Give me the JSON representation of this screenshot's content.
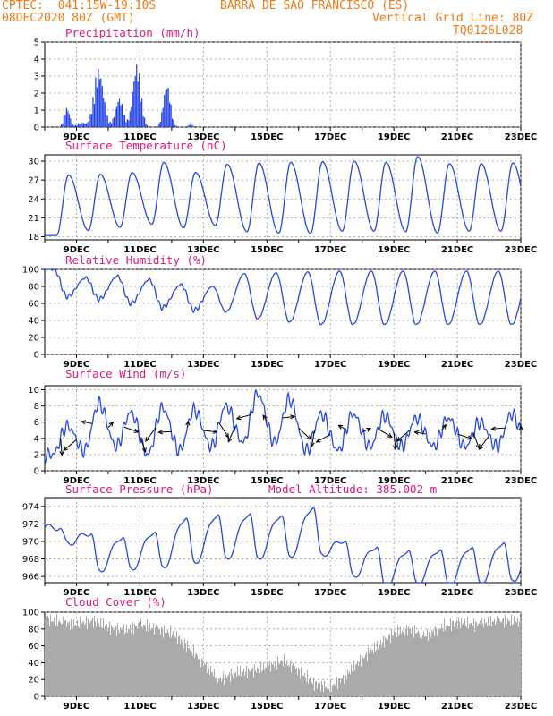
{
  "header": {
    "line1_left": "CPTEC:  041:15W-19:10S",
    "line1_right": "BARRA DE SAO FRANCISCO (ES)",
    "line2_left": "08DEC2020 80Z (GMT)",
    "line2_right": "Vertical Grid Line: 80Z",
    "line3_right": "TQ0126L028"
  },
  "colors": {
    "header": "#ee7a1a",
    "title": "#e0167c",
    "line": "#2448e0",
    "bar": "#1f3fe6",
    "cloud": "#aaaaaa",
    "arrow": "#000000",
    "grid": "#999999"
  },
  "chart_data": [
    {
      "type": "bar",
      "title": "Precipitation (mm/h)",
      "ylim": [
        0,
        5
      ],
      "yticks": [
        0,
        1,
        2,
        3,
        4,
        5
      ],
      "xticks": [
        "9DEC",
        "11DEC",
        "13DEC",
        "15DEC",
        "17DEC",
        "19DEC",
        "21DEC",
        "23DEC"
      ],
      "x_range_days": [
        8.0,
        23.0
      ],
      "rain_events": [
        {
          "center": 8.7,
          "width": 0.18,
          "peak": 1.2
        },
        {
          "center": 9.15,
          "width": 0.25,
          "peak": 0.3
        },
        {
          "center": 9.7,
          "width": 0.3,
          "peak": 3.6
        },
        {
          "center": 10.35,
          "width": 0.25,
          "peak": 1.8
        },
        {
          "center": 10.9,
          "width": 0.25,
          "peak": 3.9
        },
        {
          "center": 11.85,
          "width": 0.22,
          "peak": 2.7
        },
        {
          "center": 12.6,
          "width": 0.1,
          "peak": 0.3
        }
      ]
    },
    {
      "type": "line",
      "title": "Surface Temperature (nC)",
      "ylim": [
        17.5,
        31
      ],
      "yticks": [
        18,
        21,
        24,
        27,
        30
      ],
      "xticks": [
        "9DEC",
        "11DEC",
        "13DEC",
        "15DEC",
        "17DEC",
        "19DEC",
        "21DEC",
        "23DEC"
      ],
      "daily_min": [
        18.2,
        19.0,
        19.5,
        20.0,
        19.4,
        19.8,
        18.8,
        18.6,
        18.5,
        18.9,
        18.9,
        18.8,
        18.6,
        18.9,
        18.9,
        19.0
      ],
      "daily_max": [
        27.8,
        27.9,
        28.2,
        29.8,
        28.2,
        29.5,
        29.7,
        29.8,
        29.9,
        30.0,
        29.8,
        30.7,
        29.6,
        29.6,
        29.7,
        29.8
      ]
    },
    {
      "type": "line",
      "title": "Relative Humidity (%)",
      "ylim": [
        0,
        100
      ],
      "yticks": [
        0,
        20,
        40,
        60,
        80,
        100
      ],
      "xticks": [
        "9DEC",
        "11DEC",
        "13DEC",
        "15DEC",
        "17DEC",
        "19DEC",
        "21DEC",
        "23DEC"
      ],
      "daily_max": [
        100,
        90,
        92,
        88,
        82,
        80,
        95,
        96,
        97,
        98,
        98,
        98,
        98,
        98,
        98,
        98
      ],
      "daily_min": [
        68,
        65,
        60,
        55,
        52,
        50,
        42,
        38,
        35,
        35,
        35,
        35,
        35,
        35,
        35,
        35
      ]
    },
    {
      "type": "line",
      "title": "Surface Wind (m/s)",
      "ylim": [
        0,
        10.5
      ],
      "yticks": [
        0,
        2,
        4,
        6,
        8,
        10
      ],
      "xticks": [
        "9DEC",
        "11DEC",
        "13DEC",
        "15DEC",
        "17DEC",
        "19DEC",
        "21DEC",
        "23DEC"
      ],
      "daily_max": [
        5.5,
        8.3,
        7.2,
        7.8,
        7.5,
        8.0,
        9.5,
        8.8,
        7.0,
        7.0,
        6.8,
        6.5,
        6.5,
        6.0,
        7.0,
        7.8
      ],
      "daily_min": [
        2.0,
        2.5,
        3.0,
        2.0,
        2.5,
        3.0,
        3.5,
        3.5,
        2.5,
        2.5,
        3.0,
        3.0,
        3.0,
        3.0,
        3.0,
        3.0
      ],
      "arrows_note": "direction vectors"
    },
    {
      "type": "line",
      "title": "Surface Pressure (hPa)",
      "subtitle": "Model Altitude: 385.002 m",
      "ylim": [
        965.3,
        975
      ],
      "yticks": [
        966,
        968,
        970,
        972,
        974
      ],
      "xticks": [
        "9DEC",
        "11DEC",
        "13DEC",
        "15DEC",
        "17DEC",
        "19DEC",
        "21DEC",
        "23DEC"
      ],
      "daily_max": [
        971.6,
        971.0,
        970.6,
        971.2,
        972.8,
        973.2,
        973.3,
        973.1,
        974.0,
        970.2,
        969.5,
        969.1,
        969.2,
        969.5,
        970.0,
        969.8
      ],
      "daily_min": [
        969.8,
        966.6,
        966.8,
        967.0,
        967.5,
        968.0,
        968.0,
        968.2,
        968.5,
        966.0,
        964.8,
        965.2,
        965.0,
        965.2,
        965.5,
        965.8
      ]
    },
    {
      "type": "area",
      "title": "Cloud Cover (%)",
      "ylim": [
        0,
        100
      ],
      "yticks": [
        0,
        20,
        40,
        60,
        80,
        100
      ],
      "xticks": [
        "9DEC",
        "11DEC",
        "13DEC",
        "15DEC",
        "17DEC",
        "19DEC",
        "21DEC",
        "23DEC"
      ],
      "profile": [
        [
          8.0,
          92
        ],
        [
          8.5,
          88
        ],
        [
          9.0,
          85
        ],
        [
          9.5,
          90
        ],
        [
          10.0,
          82
        ],
        [
          10.5,
          78
        ],
        [
          11.0,
          85
        ],
        [
          11.5,
          80
        ],
        [
          12.0,
          75
        ],
        [
          12.5,
          60
        ],
        [
          13.0,
          40
        ],
        [
          13.5,
          20
        ],
        [
          14.0,
          28
        ],
        [
          14.5,
          30
        ],
        [
          15.0,
          35
        ],
        [
          15.5,
          42
        ],
        [
          16.0,
          30
        ],
        [
          16.5,
          15
        ],
        [
          17.0,
          10
        ],
        [
          17.5,
          25
        ],
        [
          18.0,
          45
        ],
        [
          18.5,
          60
        ],
        [
          19.0,
          75
        ],
        [
          19.5,
          80
        ],
        [
          20.0,
          72
        ],
        [
          20.5,
          82
        ],
        [
          21.0,
          88
        ],
        [
          21.5,
          85
        ],
        [
          22.0,
          88
        ],
        [
          22.5,
          90
        ],
        [
          23.0,
          88
        ]
      ]
    }
  ]
}
